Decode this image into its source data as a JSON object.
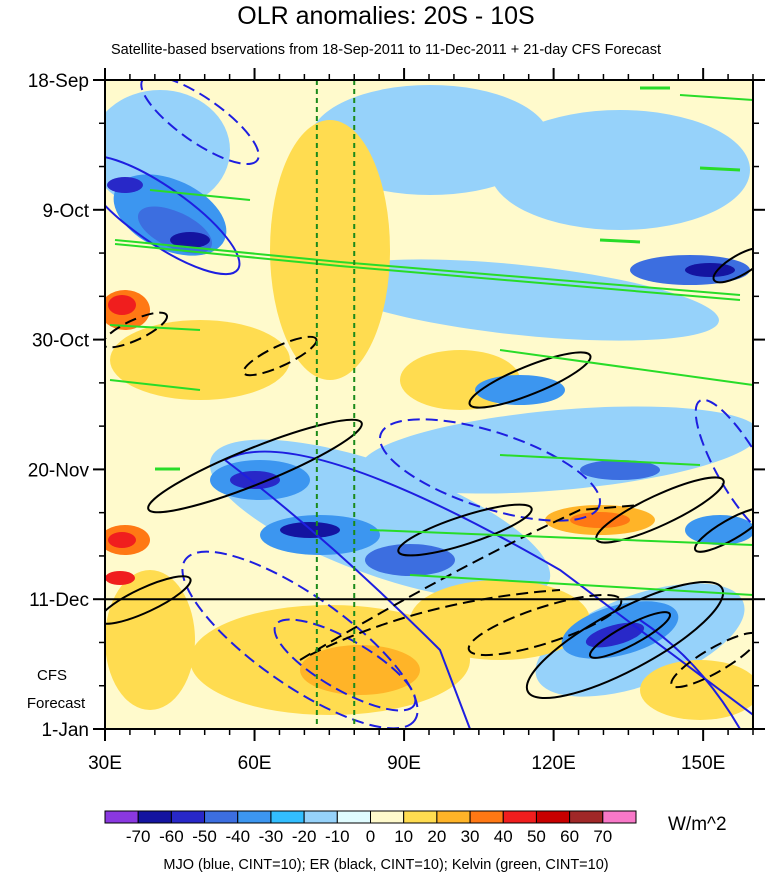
{
  "title": "OLR anomalies: 20S - 10S",
  "subtitle": "Satellite-based bservations from 18-Sep-2011 to 11-Dec-2011 + 21-day CFS Forecast",
  "footer": "MJO (blue, CINT=10); ER (black, CINT=10); Kelvin (green, CINT=10)",
  "units": "W/m^2",
  "forecast_label": [
    "CFS",
    "Forecast"
  ],
  "chart_data": {
    "type": "heatmap",
    "title": "OLR anomalies: 20S - 10S",
    "x_ticks": [
      "30E",
      "60E",
      "90E",
      "120E",
      "150E"
    ],
    "x_tick_values": [
      30,
      60,
      90,
      120,
      150
    ],
    "x_range": [
      30,
      160
    ],
    "y_ticks": [
      "18-Sep",
      "9-Oct",
      "30-Oct",
      "20-Nov",
      "11-Dec",
      "1-Jan"
    ],
    "y_range": [
      "18-Sep-2011",
      "1-Jan-2012"
    ],
    "observation_end": "11-Dec",
    "reference_lines_lon": [
      72.5,
      80
    ],
    "colorbar": {
      "labels": [
        "-70",
        "-60",
        "-50",
        "-40",
        "-30",
        "-20",
        "-10",
        "0",
        "10",
        "20",
        "30",
        "40",
        "50",
        "60",
        "70"
      ],
      "colors": [
        "#8a38e0",
        "#1414a0",
        "#2828c8",
        "#3c6ee0",
        "#3c96f0",
        "#32beff",
        "#96d2fa",
        "#e0fcff",
        "#fffacc",
        "#ffdc50",
        "#ffb428",
        "#ff7814",
        "#f01e1e",
        "#c80000",
        "#a02828",
        "#f878c8"
      ]
    },
    "contours": [
      {
        "name": "MJO",
        "color": "blue",
        "cint": 10
      },
      {
        "name": "ER",
        "color": "black",
        "cint": 10
      },
      {
        "name": "Kelvin",
        "color": "green",
        "cint": 10
      }
    ]
  }
}
